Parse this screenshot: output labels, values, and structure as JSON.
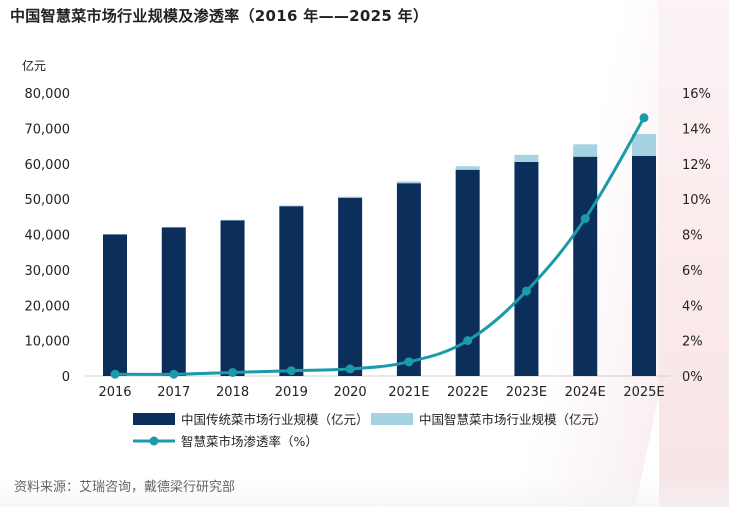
{
  "title": "中国智慧菜市场行业规模及渗透率（2016 年——2025 年）",
  "source": "资料来源：艾瑞咨询，戴德梁行研究部",
  "chart_data": {
    "type": "bar+line",
    "title": "中国智慧菜市场行业规模及渗透率（2016 年——2025 年）",
    "y_left_unit": "亿元",
    "y_left_lim": [
      0,
      80000
    ],
    "y_left_ticks": [
      "0",
      "10,000",
      "20,000",
      "30,000",
      "40,000",
      "50,000",
      "60,000",
      "70,000",
      "80,000"
    ],
    "y_right_lim": [
      0,
      16
    ],
    "y_right_ticks": [
      "0%",
      "2%",
      "4%",
      "6%",
      "8%",
      "10%",
      "12%",
      "14%",
      "16%"
    ],
    "categories": [
      "2016",
      "2017",
      "2018",
      "2019",
      "2020",
      "2021E",
      "2022E",
      "2023E",
      "2024E",
      "2025E"
    ],
    "series": [
      {
        "name": "中国传统菜市场行业规模（亿元）",
        "kind": "bar-stack",
        "color": "#0b2e5b",
        "values": [
          40000,
          42000,
          44000,
          48000,
          50400,
          54500,
          58300,
          60500,
          62000,
          62200
        ]
      },
      {
        "name": "中国智慧菜市场行业规模（亿元）",
        "kind": "bar-stack",
        "color": "#a6d3e2",
        "values": [
          100,
          100,
          150,
          200,
          300,
          500,
          1000,
          2000,
          3500,
          6200
        ]
      },
      {
        "name": "智慧菜市场渗透率（%）",
        "kind": "line",
        "axis": "right",
        "color": "#1b9aaa",
        "values": [
          0.1,
          0.1,
          0.2,
          0.3,
          0.4,
          0.8,
          2.0,
          4.8,
          8.9,
          14.6
        ]
      }
    ],
    "legend": [
      "中国传统菜市场行业规模（亿元）",
      "中国智慧菜市场行业规模（亿元）",
      "智慧菜市场渗透率（%）"
    ]
  }
}
